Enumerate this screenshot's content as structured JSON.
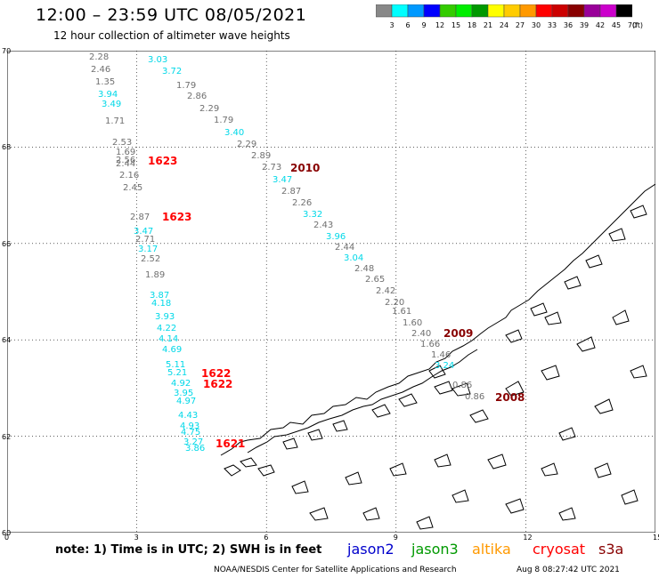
{
  "title": "12:00 – 23:59 UTC 08/05/2021",
  "subtitle": "12 hour collection of altimeter wave heights",
  "colorbar": {
    "labels": [
      "3",
      "6",
      "9",
      "12",
      "15",
      "18",
      "21",
      "24",
      "27",
      "30",
      "33",
      "36",
      "39",
      "42",
      "45",
      "70"
    ],
    "unit": "(ft)",
    "colors": [
      "#888888",
      "#00ffff",
      "#0099ff",
      "#0000ff",
      "#33cc00",
      "#00ee00",
      "#009900",
      "#ffff00",
      "#ffcc00",
      "#ff9900",
      "#ff0000",
      "#cc0000",
      "#880000",
      "#990099",
      "#cc00cc",
      "#000000"
    ]
  },
  "axes": {
    "x_ticks": [
      "0",
      "3",
      "6",
      "9",
      "12",
      "15"
    ],
    "y_ticks": [
      "70",
      "68",
      "66",
      "64",
      "62",
      "60"
    ]
  },
  "observations": [
    {
      "text": "2.28",
      "color": "#707070"
    },
    {
      "text": "2.46",
      "color": "#707070"
    },
    {
      "text": "1.35",
      "color": "#707070"
    },
    {
      "text": "3.94",
      "color": "#00d8e8"
    },
    {
      "text": "3.49",
      "color": "#00d8e8"
    },
    {
      "text": "1.71",
      "color": "#707070"
    },
    {
      "text": "2.53",
      "color": "#707070"
    },
    {
      "text": "1.69",
      "color": "#707070"
    },
    {
      "text": "2.56",
      "color": "#707070"
    },
    {
      "text": "2.44",
      "color": "#707070"
    },
    {
      "text": "2.16",
      "color": "#707070"
    },
    {
      "text": "2.45",
      "color": "#707070"
    },
    {
      "text": "2.87",
      "color": "#707070"
    },
    {
      "text": "3.47",
      "color": "#00d8e8"
    },
    {
      "text": "2.71",
      "color": "#707070"
    },
    {
      "text": "3.17",
      "color": "#00d8e8"
    },
    {
      "text": "2.52",
      "color": "#707070"
    },
    {
      "text": "1.89",
      "color": "#707070"
    },
    {
      "text": "3.87",
      "color": "#00d8e8"
    },
    {
      "text": "4.18",
      "color": "#00d8e8"
    },
    {
      "text": "3.93",
      "color": "#00d8e8"
    },
    {
      "text": "4.22",
      "color": "#00d8e8"
    },
    {
      "text": "4.14",
      "color": "#00d8e8"
    },
    {
      "text": "4.69",
      "color": "#00d8e8"
    },
    {
      "text": "5.11",
      "color": "#00d8e8"
    },
    {
      "text": "5.21",
      "color": "#00d8e8"
    },
    {
      "text": "4.92",
      "color": "#00d8e8"
    },
    {
      "text": "3.95",
      "color": "#00d8e8"
    },
    {
      "text": "4.97",
      "color": "#00d8e8"
    },
    {
      "text": "4.43",
      "color": "#00d8e8"
    },
    {
      "text": "4.93",
      "color": "#00d8e8"
    },
    {
      "text": "4.75",
      "color": "#00d8e8"
    },
    {
      "text": "3.27",
      "color": "#00d8e8"
    },
    {
      "text": "3.86",
      "color": "#00d8e8"
    },
    {
      "text": "3.03",
      "color": "#00d8e8"
    },
    {
      "text": "3.72",
      "color": "#00d8e8"
    },
    {
      "text": "1.79",
      "color": "#707070"
    },
    {
      "text": "2.86",
      "color": "#707070"
    },
    {
      "text": "2.29",
      "color": "#707070"
    },
    {
      "text": "1.79",
      "color": "#707070"
    },
    {
      "text": "3.40",
      "color": "#00d8e8"
    },
    {
      "text": "2.29",
      "color": "#707070"
    },
    {
      "text": "2.89",
      "color": "#707070"
    },
    {
      "text": "2.73",
      "color": "#707070"
    },
    {
      "text": "3.47",
      "color": "#00d8e8"
    },
    {
      "text": "2.87",
      "color": "#707070"
    },
    {
      "text": "2.26",
      "color": "#707070"
    },
    {
      "text": "3.32",
      "color": "#00d8e8"
    },
    {
      "text": "2.43",
      "color": "#707070"
    },
    {
      "text": "3.96",
      "color": "#00d8e8"
    },
    {
      "text": "2.44",
      "color": "#707070"
    },
    {
      "text": "3.04",
      "color": "#00d8e8"
    },
    {
      "text": "2.48",
      "color": "#707070"
    },
    {
      "text": "2.65",
      "color": "#707070"
    },
    {
      "text": "2.42",
      "color": "#707070"
    },
    {
      "text": "2.20",
      "color": "#707070"
    },
    {
      "text": "1.61",
      "color": "#707070"
    },
    {
      "text": "1.60",
      "color": "#707070"
    },
    {
      "text": "2.40",
      "color": "#707070"
    },
    {
      "text": "1.66",
      "color": "#707070"
    },
    {
      "text": "1.46",
      "color": "#707070"
    },
    {
      "text": "3.24",
      "color": "#00d8e8"
    },
    {
      "text": "0.86",
      "color": "#707070"
    },
    {
      "text": "0.86",
      "color": "#707070"
    }
  ],
  "passes": [
    {
      "text": "1623",
      "color": "#ff0000"
    },
    {
      "text": "2010",
      "color": "#880000"
    },
    {
      "text": "1623",
      "color": "#ff0000"
    },
    {
      "text": "2009",
      "color": "#880000"
    },
    {
      "text": "1622",
      "color": "#ff0000"
    },
    {
      "text": "1622",
      "color": "#ff0000"
    },
    {
      "text": "2008",
      "color": "#880000"
    },
    {
      "text": "1621",
      "color": "#ff0000"
    }
  ],
  "note": "note: 1) Time is in UTC; 2) SWH is in feet",
  "satellites": [
    {
      "text": "jason2",
      "color": "#0000cc"
    },
    {
      "text": "jason3",
      "color": "#009900"
    },
    {
      "text": "altika",
      "color": "#ff9900"
    },
    {
      "text": "cryosat",
      "color": "#ff0000"
    },
    {
      "text": "s3a",
      "color": "#880000"
    }
  ],
  "credit": "NOAA/NESDIS Center for Satellite Applications and Research",
  "issued": "Aug  8 08:27:42 UTC 2021"
}
